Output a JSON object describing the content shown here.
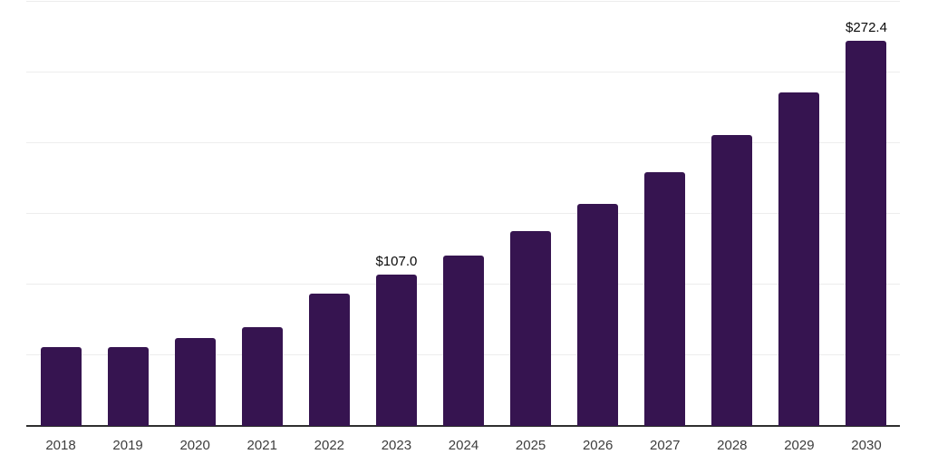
{
  "chart_data": {
    "type": "bar",
    "title": "",
    "xlabel": "",
    "ylabel": "",
    "categories": [
      "2018",
      "2019",
      "2020",
      "2021",
      "2022",
      "2023",
      "2024",
      "2025",
      "2026",
      "2027",
      "2028",
      "2029",
      "2030"
    ],
    "values": [
      56.0,
      55.5,
      61.9,
      69.6,
      93.8,
      107.0,
      120.6,
      137.9,
      157.3,
      179.4,
      205.5,
      236.2,
      272.4
    ],
    "value_labels": [
      "",
      "",
      "",
      "",
      "",
      "$107.0",
      "",
      "",
      "",
      "",
      "",
      "",
      "$272.4"
    ],
    "ylim": [
      0,
      300
    ],
    "gridline_interval": 50,
    "grid": "horizontal",
    "legend": "none",
    "colors": {
      "bar": "#361450",
      "axis_line": "#2f2f2f",
      "gridline": "#ededed",
      "value_label": "#0a0a0a",
      "tick_label": "#3d3d3d",
      "background": "#ffffff"
    }
  }
}
